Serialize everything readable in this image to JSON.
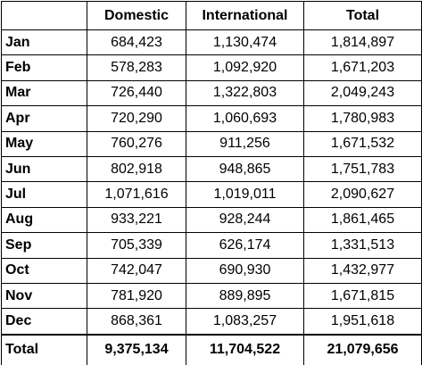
{
  "table": {
    "header": [
      "",
      "Domestic",
      "International",
      "Total"
    ],
    "rows": [
      [
        "Jan",
        "684,423",
        "1,130,474",
        "1,814,897"
      ],
      [
        "Feb",
        "578,283",
        "1,092,920",
        "1,671,203"
      ],
      [
        "Mar",
        "726,440",
        "1,322,803",
        "2,049,243"
      ],
      [
        "Apr",
        "720,290",
        "1,060,693",
        "1,780,983"
      ],
      [
        "May",
        "760,276",
        "911,256",
        "1,671,532"
      ],
      [
        "Jun",
        "802,918",
        "948,865",
        "1,751,783"
      ],
      [
        "Jul",
        "1,071,616",
        "1,019,011",
        "2,090,627"
      ],
      [
        "Aug",
        "933,221",
        "928,244",
        "1,861,465"
      ],
      [
        "Sep",
        "705,339",
        "626,174",
        "1,331,513"
      ],
      [
        "Oct",
        "742,047",
        "690,930",
        "1,432,977"
      ],
      [
        "Nov",
        "781,920",
        "889,895",
        "1,671,815"
      ],
      [
        "Dec",
        "868,361",
        "1,083,257",
        "1,951,618"
      ]
    ],
    "total": [
      "Total",
      "9,375,134",
      "11,704,522",
      "21,079,656"
    ]
  }
}
